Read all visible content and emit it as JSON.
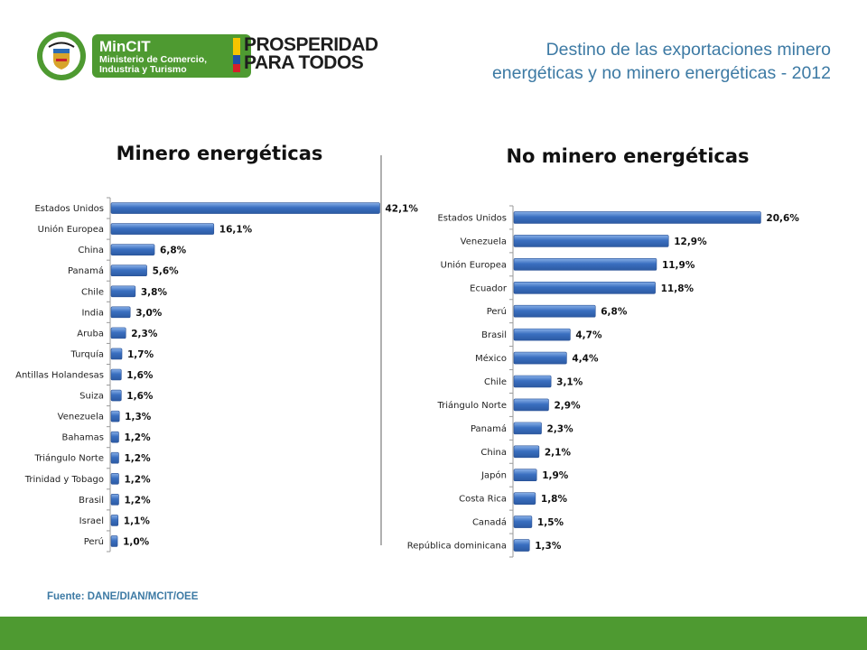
{
  "header": {
    "mincit_title": "MinCIT",
    "mincit_subtitle": "Ministerio de Comercio, Industria y Turismo",
    "prosperidad_line1": "PROSPERIDAD",
    "prosperidad_line2": "PARA TODOS",
    "page_title": "Destino de las exportaciones minero energéticas y no minero energéticas - 2012"
  },
  "colors": {
    "bar": "#3a6fc0",
    "bar_highlight": "#8ab1e8",
    "brand_green": "#4e9a31",
    "title_blue": "#3d7aa4"
  },
  "footer": {
    "source": "Fuente: DANE/DIAN/MCIT/OEE"
  },
  "chart_data": [
    {
      "type": "bar",
      "orientation": "horizontal",
      "title": "Minero energéticas",
      "categories": [
        "Estados Unidos",
        "Unión Europea",
        "China",
        "Panamá",
        "Chile",
        "India",
        "Aruba",
        "Turquía",
        "Antillas Holandesas",
        "Suiza",
        "Venezuela",
        "Bahamas",
        "Triángulo Norte",
        "Trinidad y Tobago",
        "Brasil",
        "Israel",
        "Perú"
      ],
      "values": [
        42.1,
        16.1,
        6.8,
        5.6,
        3.8,
        3.0,
        2.3,
        1.7,
        1.6,
        1.6,
        1.3,
        1.2,
        1.2,
        1.2,
        1.2,
        1.1,
        1.0
      ],
      "labels": [
        "42,1%",
        "16,1%",
        "6,8%",
        "5,6%",
        "3,8%",
        "3,0%",
        "2,3%",
        "1,7%",
        "1,6%",
        "1,6%",
        "1,3%",
        "1,2%",
        "1,2%",
        "1,2%",
        "1,2%",
        "1,1%",
        "1,0%"
      ],
      "xlim": [
        0,
        45
      ],
      "grid": false
    },
    {
      "type": "bar",
      "orientation": "horizontal",
      "title": "No minero energéticas",
      "categories": [
        "Estados Unidos",
        "Venezuela",
        "Unión Europea",
        "Ecuador",
        "Perú",
        "Brasil",
        "México",
        "Chile",
        "Triángulo Norte",
        "Panamá",
        "China",
        "Japón",
        "Costa Rica",
        "Canadá",
        "República dominicana"
      ],
      "values": [
        20.6,
        12.9,
        11.9,
        11.8,
        6.8,
        4.7,
        4.4,
        3.1,
        2.9,
        2.3,
        2.1,
        1.9,
        1.8,
        1.5,
        1.3
      ],
      "labels": [
        "20,6%",
        "12,9%",
        "11,9%",
        "11,8%",
        "6,8%",
        "4,7%",
        "4,4%",
        "3,1%",
        "2,9%",
        "2,3%",
        "2,1%",
        "1,9%",
        "1,8%",
        "1,5%",
        "1,3%"
      ],
      "xlim": [
        0,
        22
      ],
      "grid": false
    }
  ]
}
